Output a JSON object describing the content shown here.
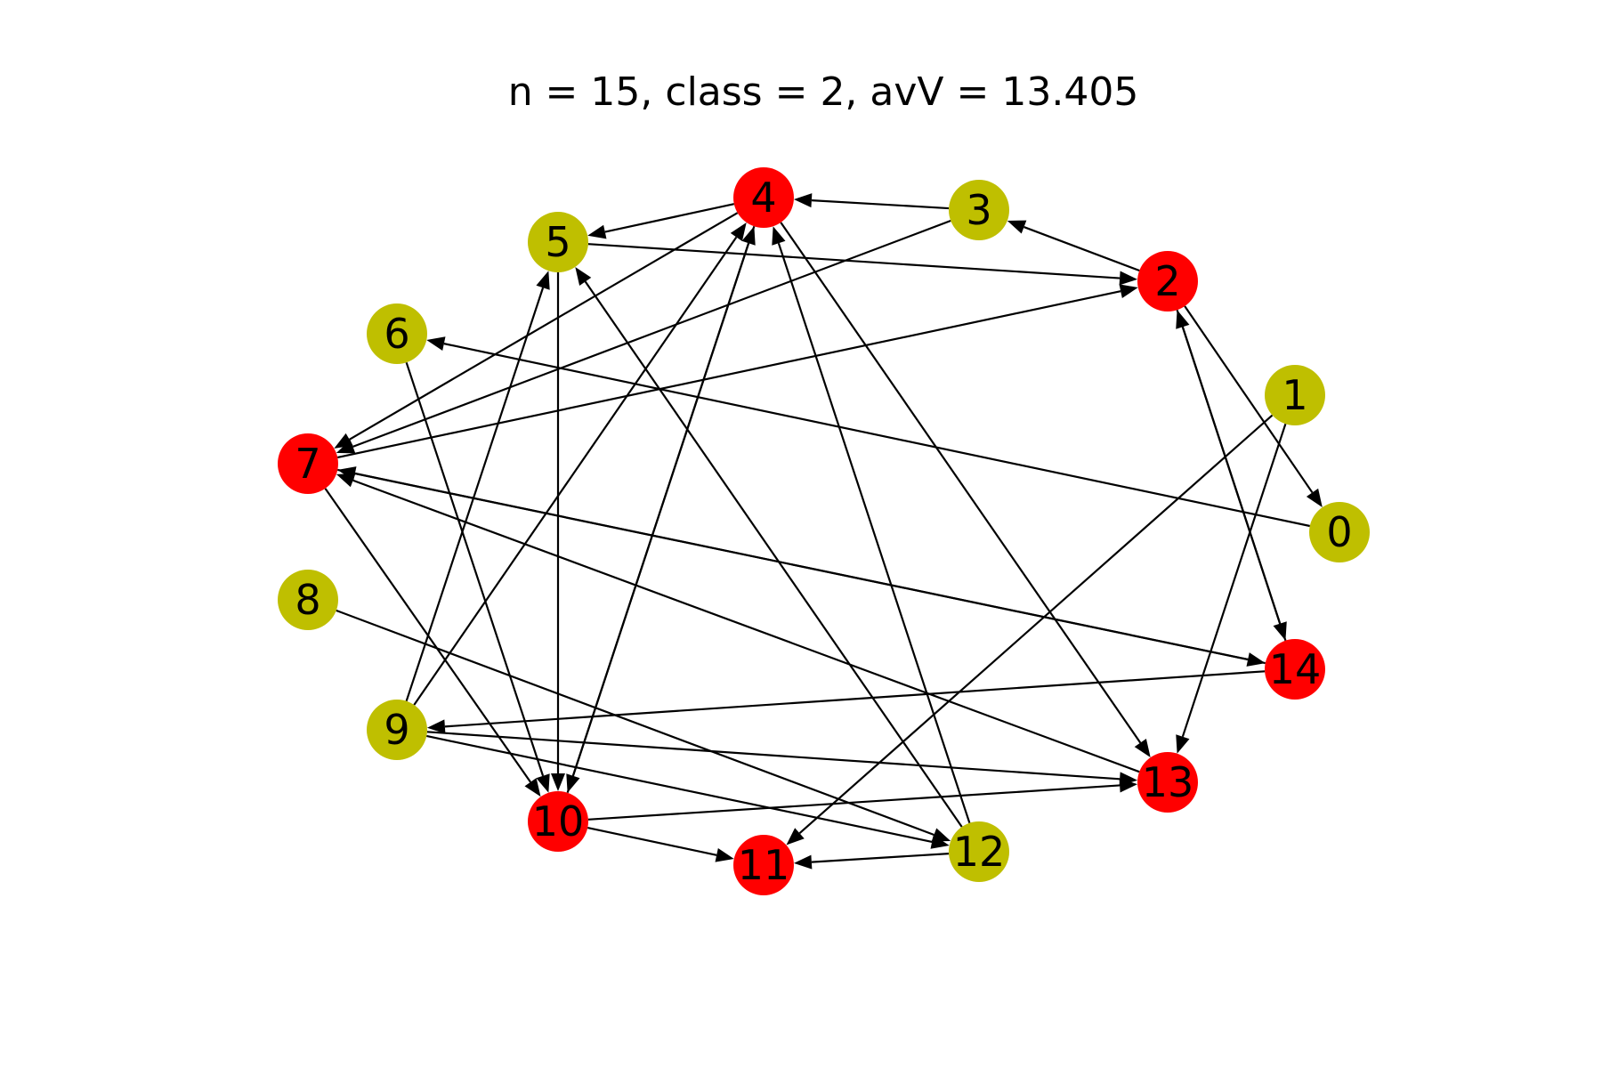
{
  "title": "n = 15, class = 2, avV = 13.405",
  "colors": {
    "red": "#ff0000",
    "olive": "#bfbf00"
  },
  "nodes": [
    {
      "id": "0",
      "label": "0",
      "color": "olive"
    },
    {
      "id": "1",
      "label": "1",
      "color": "olive"
    },
    {
      "id": "2",
      "label": "2",
      "color": "red"
    },
    {
      "id": "3",
      "label": "3",
      "color": "olive"
    },
    {
      "id": "4",
      "label": "4",
      "color": "red"
    },
    {
      "id": "5",
      "label": "5",
      "color": "olive"
    },
    {
      "id": "6",
      "label": "6",
      "color": "olive"
    },
    {
      "id": "7",
      "label": "7",
      "color": "red"
    },
    {
      "id": "8",
      "label": "8",
      "color": "olive"
    },
    {
      "id": "9",
      "label": "9",
      "color": "olive"
    },
    {
      "id": "10",
      "label": "10",
      "color": "red"
    },
    {
      "id": "11",
      "label": "11",
      "color": "red"
    },
    {
      "id": "12",
      "label": "12",
      "color": "olive"
    },
    {
      "id": "13",
      "label": "13",
      "color": "red"
    },
    {
      "id": "14",
      "label": "14",
      "color": "red"
    }
  ],
  "edges": [
    {
      "from": "0",
      "to": "6"
    },
    {
      "from": "1",
      "to": "11"
    },
    {
      "from": "1",
      "to": "13"
    },
    {
      "from": "2",
      "to": "3"
    },
    {
      "from": "2",
      "to": "0"
    },
    {
      "from": "2",
      "to": "14"
    },
    {
      "from": "3",
      "to": "4"
    },
    {
      "from": "3",
      "to": "7"
    },
    {
      "from": "4",
      "to": "5"
    },
    {
      "from": "4",
      "to": "7"
    },
    {
      "from": "4",
      "to": "13"
    },
    {
      "from": "4",
      "to": "10"
    },
    {
      "from": "5",
      "to": "2"
    },
    {
      "from": "5",
      "to": "10"
    },
    {
      "from": "6",
      "to": "10"
    },
    {
      "from": "7",
      "to": "2"
    },
    {
      "from": "7",
      "to": "14"
    },
    {
      "from": "7",
      "to": "10"
    },
    {
      "from": "8",
      "to": "12"
    },
    {
      "from": "9",
      "to": "5"
    },
    {
      "from": "9",
      "to": "4"
    },
    {
      "from": "9",
      "to": "13"
    },
    {
      "from": "9",
      "to": "12"
    },
    {
      "from": "10",
      "to": "4"
    },
    {
      "from": "10",
      "to": "13"
    },
    {
      "from": "10",
      "to": "11"
    },
    {
      "from": "12",
      "to": "11"
    },
    {
      "from": "12",
      "to": "5"
    },
    {
      "from": "12",
      "to": "4"
    },
    {
      "from": "13",
      "to": "7"
    },
    {
      "from": "14",
      "to": "9"
    },
    {
      "from": "14",
      "to": "2"
    },
    {
      "from": "14",
      "to": "7"
    }
  ]
}
